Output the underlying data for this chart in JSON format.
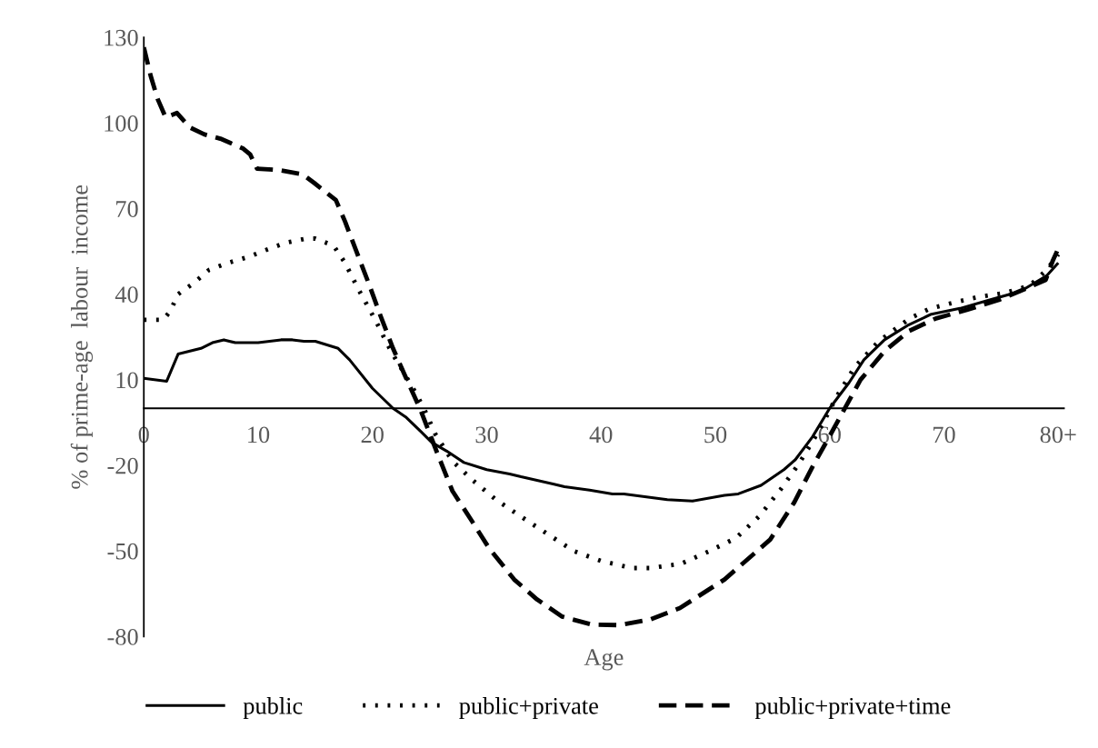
{
  "chart_data": {
    "type": "line",
    "xlabel": "Age",
    "ylabel": "% of prime-age  labour  income",
    "xlim": [
      0,
      80.5
    ],
    "xticks": [
      0,
      10,
      20,
      30,
      40,
      50,
      60,
      70,
      {
        "value": 80,
        "label": "80+"
      }
    ],
    "ylim": [
      -80,
      130
    ],
    "yticks": [
      130,
      100,
      70,
      40,
      10,
      -20,
      -50,
      -80
    ],
    "grid": false,
    "legend": "bottom",
    "marker": "none",
    "series": [
      {
        "name": "public",
        "color": "#000000",
        "line_style": "solid",
        "x": [
          0,
          2,
          3,
          5,
          6,
          7,
          8,
          10,
          12,
          13,
          14,
          15,
          17,
          18,
          20,
          21.8,
          22.9,
          24.2,
          25.2,
          26.5,
          28,
          30,
          32,
          33,
          35.8,
          36.8,
          39,
          41,
          42,
          45.8,
          48,
          50.8,
          52,
          54,
          56,
          57,
          58.5,
          60,
          61.7,
          63,
          64.8,
          66.8,
          68.9,
          71.4,
          74,
          76.7,
          79,
          80
        ],
        "values": [
          10.5,
          9.5,
          19,
          21,
          23,
          24,
          23,
          23,
          24,
          24,
          23.5,
          23.5,
          21,
          17,
          7,
          0,
          -3,
          -8,
          -12,
          -15,
          -19,
          -21.5,
          -23,
          -24,
          -26.5,
          -27.5,
          -28.7,
          -30,
          -30,
          -32,
          -32.5,
          -30.5,
          -30,
          -27,
          -21.5,
          -18,
          -10,
          0,
          9,
          17,
          24,
          29,
          33,
          35,
          38,
          41,
          46.5,
          51
        ]
      },
      {
        "name": "public+private",
        "color": "#000000",
        "line_style": "dotted",
        "x": [
          0,
          1.7,
          2.3,
          3,
          4.4,
          5.7,
          7.4,
          9.1,
          10.7,
          12.4,
          14.2,
          15,
          16.6,
          17.6,
          18.8,
          19.7,
          20.5,
          21.3,
          22.2,
          22.6,
          23.7,
          24.5,
          25.5,
          27,
          28.7,
          30.8,
          33.2,
          35.3,
          37.6,
          40,
          42.7,
          44.3,
          47,
          49.5,
          51.8,
          53.8,
          55.7,
          57.3,
          58.6,
          59.5,
          60.6,
          62.2,
          64.3,
          67,
          68.8,
          71.3,
          73,
          75.4,
          77.5,
          79,
          80
        ],
        "values": [
          31,
          31,
          34,
          40,
          44,
          48.5,
          51,
          53,
          55.5,
          58,
          59.5,
          59.5,
          57,
          51,
          41.5,
          35,
          29,
          22.5,
          16,
          13.5,
          6,
          0,
          -9,
          -18.5,
          -25,
          -32,
          -38.5,
          -44,
          -50,
          -53.5,
          -56,
          -56,
          -54.5,
          -50,
          -45.5,
          -38,
          -28.5,
          -19.5,
          -11,
          -4.5,
          4,
          14.5,
          23.5,
          31.5,
          35,
          37.5,
          39,
          40.5,
          43,
          48.5,
          54
        ]
      },
      {
        "name": "public+private+time",
        "color": "#000000",
        "line_style": "dashed",
        "x": [
          0,
          0.6,
          1.2,
          1.9,
          2.9,
          4,
          5.3,
          6.7,
          8.7,
          9.3,
          9.9,
          11.8,
          13.9,
          14.9,
          16.8,
          17.6,
          18.6,
          19.7,
          20.7,
          21.8,
          22.9,
          24.2,
          25.7,
          27,
          28.7,
          30.2,
          32.4,
          34.4,
          36.6,
          39.2,
          41.6,
          44.3,
          46.9,
          50.8,
          54.8,
          56.9,
          58.5,
          60.1,
          61.4,
          62.7,
          64.8,
          66.9,
          69.3,
          72,
          74.8,
          77.2,
          78.9,
          79.5,
          80
        ],
        "values": [
          126.5,
          116.5,
          108.5,
          102,
          103.5,
          98.5,
          96,
          94.5,
          91,
          89,
          84,
          83.5,
          82,
          79,
          73,
          65.5,
          55,
          43.5,
          32.5,
          21,
          11,
          -0.5,
          -16,
          -29,
          -39.5,
          -49,
          -60,
          -67,
          -73,
          -75.8,
          -76,
          -74,
          -70,
          -60,
          -46,
          -33,
          -20.5,
          -9,
          0.5,
          10,
          20,
          27,
          31.5,
          34.5,
          38,
          42,
          45,
          51.5,
          56
        ]
      }
    ]
  }
}
